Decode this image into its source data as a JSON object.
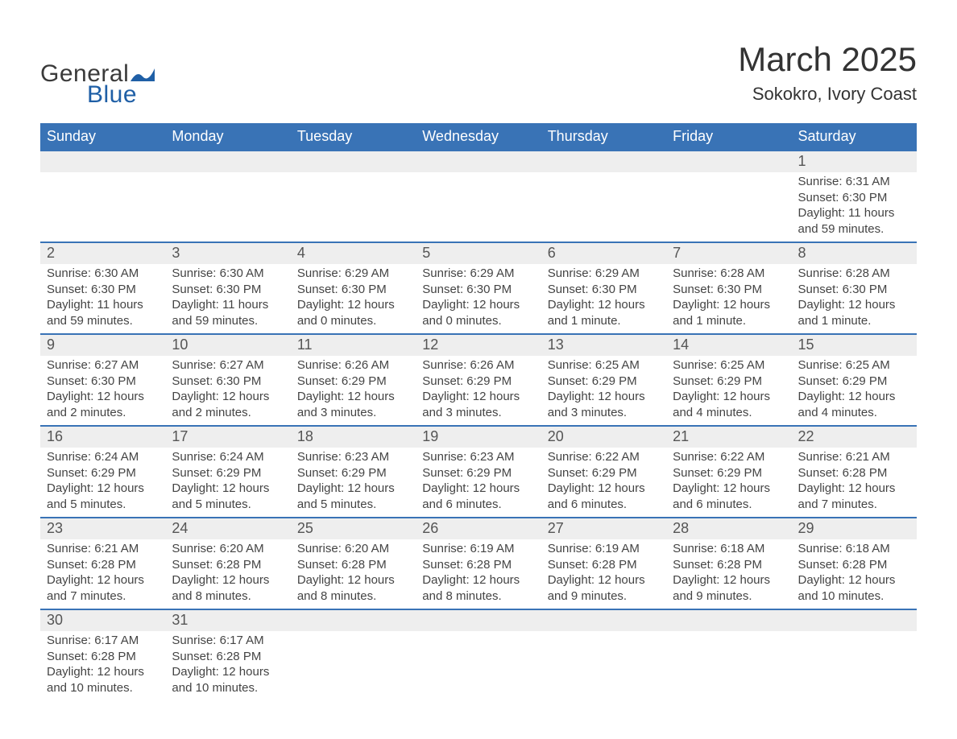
{
  "logo": {
    "text_general": "General",
    "text_blue": "Blue",
    "wave_color": "#1f5fa6"
  },
  "header": {
    "title": "March 2025",
    "location": "Sokokro, Ivory Coast"
  },
  "style": {
    "header_bg": "#3973b6",
    "header_text": "#ffffff",
    "daynum_bg": "#eeeeee",
    "row_border": "#3973b6",
    "text_color": "#444444",
    "title_fontsize": 42,
    "location_fontsize": 22,
    "dayheader_fontsize": 18,
    "daynum_fontsize": 18,
    "detail_fontsize": 15
  },
  "day_labels": [
    "Sunday",
    "Monday",
    "Tuesday",
    "Wednesday",
    "Thursday",
    "Friday",
    "Saturday"
  ],
  "weeks": [
    [
      null,
      null,
      null,
      null,
      null,
      null,
      {
        "n": "1",
        "sr": "Sunrise: 6:31 AM",
        "ss": "Sunset: 6:30 PM",
        "dl": "Daylight: 11 hours and 59 minutes."
      }
    ],
    [
      {
        "n": "2",
        "sr": "Sunrise: 6:30 AM",
        "ss": "Sunset: 6:30 PM",
        "dl": "Daylight: 11 hours and 59 minutes."
      },
      {
        "n": "3",
        "sr": "Sunrise: 6:30 AM",
        "ss": "Sunset: 6:30 PM",
        "dl": "Daylight: 11 hours and 59 minutes."
      },
      {
        "n": "4",
        "sr": "Sunrise: 6:29 AM",
        "ss": "Sunset: 6:30 PM",
        "dl": "Daylight: 12 hours and 0 minutes."
      },
      {
        "n": "5",
        "sr": "Sunrise: 6:29 AM",
        "ss": "Sunset: 6:30 PM",
        "dl": "Daylight: 12 hours and 0 minutes."
      },
      {
        "n": "6",
        "sr": "Sunrise: 6:29 AM",
        "ss": "Sunset: 6:30 PM",
        "dl": "Daylight: 12 hours and 1 minute."
      },
      {
        "n": "7",
        "sr": "Sunrise: 6:28 AM",
        "ss": "Sunset: 6:30 PM",
        "dl": "Daylight: 12 hours and 1 minute."
      },
      {
        "n": "8",
        "sr": "Sunrise: 6:28 AM",
        "ss": "Sunset: 6:30 PM",
        "dl": "Daylight: 12 hours and 1 minute."
      }
    ],
    [
      {
        "n": "9",
        "sr": "Sunrise: 6:27 AM",
        "ss": "Sunset: 6:30 PM",
        "dl": "Daylight: 12 hours and 2 minutes."
      },
      {
        "n": "10",
        "sr": "Sunrise: 6:27 AM",
        "ss": "Sunset: 6:30 PM",
        "dl": "Daylight: 12 hours and 2 minutes."
      },
      {
        "n": "11",
        "sr": "Sunrise: 6:26 AM",
        "ss": "Sunset: 6:29 PM",
        "dl": "Daylight: 12 hours and 3 minutes."
      },
      {
        "n": "12",
        "sr": "Sunrise: 6:26 AM",
        "ss": "Sunset: 6:29 PM",
        "dl": "Daylight: 12 hours and 3 minutes."
      },
      {
        "n": "13",
        "sr": "Sunrise: 6:25 AM",
        "ss": "Sunset: 6:29 PM",
        "dl": "Daylight: 12 hours and 3 minutes."
      },
      {
        "n": "14",
        "sr": "Sunrise: 6:25 AM",
        "ss": "Sunset: 6:29 PM",
        "dl": "Daylight: 12 hours and 4 minutes."
      },
      {
        "n": "15",
        "sr": "Sunrise: 6:25 AM",
        "ss": "Sunset: 6:29 PM",
        "dl": "Daylight: 12 hours and 4 minutes."
      }
    ],
    [
      {
        "n": "16",
        "sr": "Sunrise: 6:24 AM",
        "ss": "Sunset: 6:29 PM",
        "dl": "Daylight: 12 hours and 5 minutes."
      },
      {
        "n": "17",
        "sr": "Sunrise: 6:24 AM",
        "ss": "Sunset: 6:29 PM",
        "dl": "Daylight: 12 hours and 5 minutes."
      },
      {
        "n": "18",
        "sr": "Sunrise: 6:23 AM",
        "ss": "Sunset: 6:29 PM",
        "dl": "Daylight: 12 hours and 5 minutes."
      },
      {
        "n": "19",
        "sr": "Sunrise: 6:23 AM",
        "ss": "Sunset: 6:29 PM",
        "dl": "Daylight: 12 hours and 6 minutes."
      },
      {
        "n": "20",
        "sr": "Sunrise: 6:22 AM",
        "ss": "Sunset: 6:29 PM",
        "dl": "Daylight: 12 hours and 6 minutes."
      },
      {
        "n": "21",
        "sr": "Sunrise: 6:22 AM",
        "ss": "Sunset: 6:29 PM",
        "dl": "Daylight: 12 hours and 6 minutes."
      },
      {
        "n": "22",
        "sr": "Sunrise: 6:21 AM",
        "ss": "Sunset: 6:28 PM",
        "dl": "Daylight: 12 hours and 7 minutes."
      }
    ],
    [
      {
        "n": "23",
        "sr": "Sunrise: 6:21 AM",
        "ss": "Sunset: 6:28 PM",
        "dl": "Daylight: 12 hours and 7 minutes."
      },
      {
        "n": "24",
        "sr": "Sunrise: 6:20 AM",
        "ss": "Sunset: 6:28 PM",
        "dl": "Daylight: 12 hours and 8 minutes."
      },
      {
        "n": "25",
        "sr": "Sunrise: 6:20 AM",
        "ss": "Sunset: 6:28 PM",
        "dl": "Daylight: 12 hours and 8 minutes."
      },
      {
        "n": "26",
        "sr": "Sunrise: 6:19 AM",
        "ss": "Sunset: 6:28 PM",
        "dl": "Daylight: 12 hours and 8 minutes."
      },
      {
        "n": "27",
        "sr": "Sunrise: 6:19 AM",
        "ss": "Sunset: 6:28 PM",
        "dl": "Daylight: 12 hours and 9 minutes."
      },
      {
        "n": "28",
        "sr": "Sunrise: 6:18 AM",
        "ss": "Sunset: 6:28 PM",
        "dl": "Daylight: 12 hours and 9 minutes."
      },
      {
        "n": "29",
        "sr": "Sunrise: 6:18 AM",
        "ss": "Sunset: 6:28 PM",
        "dl": "Daylight: 12 hours and 10 minutes."
      }
    ],
    [
      {
        "n": "30",
        "sr": "Sunrise: 6:17 AM",
        "ss": "Sunset: 6:28 PM",
        "dl": "Daylight: 12 hours and 10 minutes."
      },
      {
        "n": "31",
        "sr": "Sunrise: 6:17 AM",
        "ss": "Sunset: 6:28 PM",
        "dl": "Daylight: 12 hours and 10 minutes."
      },
      null,
      null,
      null,
      null,
      null
    ]
  ]
}
